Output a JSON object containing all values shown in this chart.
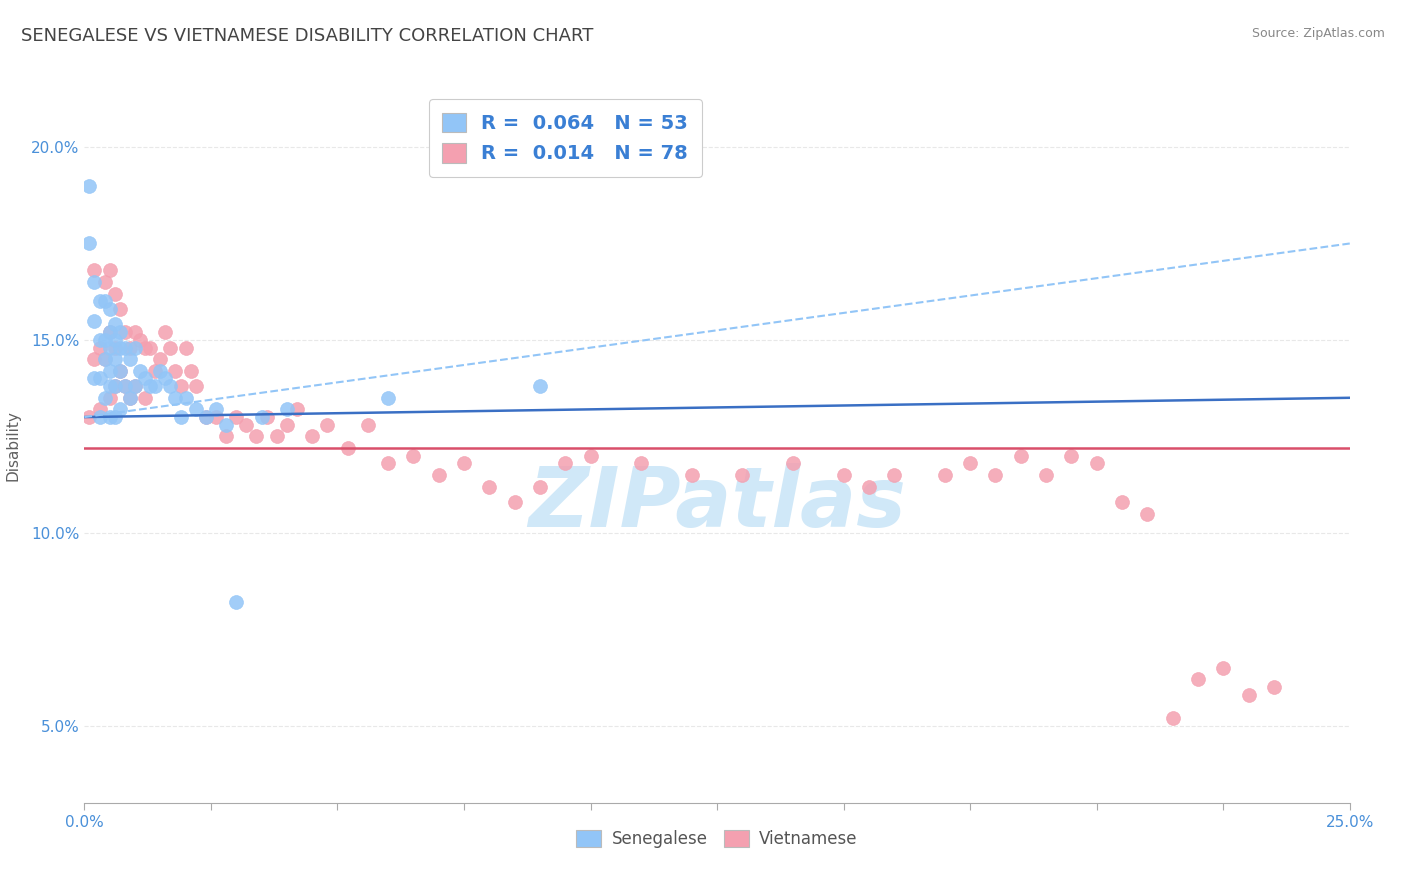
{
  "title": "SENEGALESE VS VIETNAMESE DISABILITY CORRELATION CHART",
  "source_text": "Source: ZipAtlas.com",
  "ylabel": "Disability",
  "xlim": [
    0.0,
    0.25
  ],
  "ylim": [
    0.03,
    0.215
  ],
  "xticks": [
    0.0,
    0.025,
    0.05,
    0.075,
    0.1,
    0.125,
    0.15,
    0.175,
    0.2,
    0.225,
    0.25
  ],
  "xtick_labels_show": [
    "0.0%",
    "",
    "",
    "",
    "",
    "",
    "",
    "",
    "",
    "",
    "25.0%"
  ],
  "yticks": [
    0.05,
    0.1,
    0.15,
    0.2
  ],
  "ytick_labels": [
    "5.0%",
    "10.0%",
    "15.0%",
    "20.0%"
  ],
  "senegalese_R": 0.064,
  "senegalese_N": 53,
  "vietnamese_R": 0.014,
  "vietnamese_N": 78,
  "senegalese_color": "#92c5f7",
  "vietnamese_color": "#f4a0b0",
  "senegalese_line_color": "#3a6fc4",
  "vietnamese_line_color": "#d94f6a",
  "senegalese_line_style": "-",
  "vietnamese_line_style": "-",
  "dashed_line_color": "#92c5f7",
  "legend_text_color": "#3a7fd4",
  "watermark_text": "ZIPatlas",
  "watermark_color": "#d0e8f8",
  "background_color": "#ffffff",
  "grid_color": "#e8e8e8",
  "grid_style": "--",
  "title_color": "#444444",
  "title_fontsize": 13,
  "axis_label_color": "#606060",
  "tick_label_color": "#4a90d9",
  "senegalese_scatter_x": [
    0.001,
    0.001,
    0.002,
    0.002,
    0.002,
    0.003,
    0.003,
    0.003,
    0.003,
    0.004,
    0.004,
    0.004,
    0.004,
    0.005,
    0.005,
    0.005,
    0.005,
    0.005,
    0.005,
    0.006,
    0.006,
    0.006,
    0.006,
    0.006,
    0.007,
    0.007,
    0.007,
    0.007,
    0.008,
    0.008,
    0.009,
    0.009,
    0.01,
    0.01,
    0.011,
    0.012,
    0.013,
    0.014,
    0.015,
    0.016,
    0.017,
    0.018,
    0.019,
    0.02,
    0.022,
    0.024,
    0.026,
    0.028,
    0.03,
    0.035,
    0.04,
    0.06,
    0.09
  ],
  "senegalese_scatter_y": [
    0.19,
    0.175,
    0.165,
    0.155,
    0.14,
    0.16,
    0.15,
    0.14,
    0.13,
    0.16,
    0.15,
    0.145,
    0.135,
    0.158,
    0.152,
    0.148,
    0.142,
    0.138,
    0.13,
    0.154,
    0.15,
    0.145,
    0.138,
    0.13,
    0.152,
    0.148,
    0.142,
    0.132,
    0.148,
    0.138,
    0.145,
    0.135,
    0.148,
    0.138,
    0.142,
    0.14,
    0.138,
    0.138,
    0.142,
    0.14,
    0.138,
    0.135,
    0.13,
    0.135,
    0.132,
    0.13,
    0.132,
    0.128,
    0.082,
    0.13,
    0.132,
    0.135,
    0.138
  ],
  "vietnamese_scatter_x": [
    0.001,
    0.002,
    0.002,
    0.003,
    0.003,
    0.004,
    0.004,
    0.005,
    0.005,
    0.005,
    0.006,
    0.006,
    0.006,
    0.007,
    0.007,
    0.008,
    0.008,
    0.009,
    0.009,
    0.01,
    0.01,
    0.011,
    0.012,
    0.012,
    0.013,
    0.014,
    0.015,
    0.016,
    0.017,
    0.018,
    0.019,
    0.02,
    0.021,
    0.022,
    0.024,
    0.026,
    0.028,
    0.03,
    0.032,
    0.034,
    0.036,
    0.038,
    0.04,
    0.042,
    0.045,
    0.048,
    0.052,
    0.056,
    0.06,
    0.065,
    0.07,
    0.075,
    0.08,
    0.085,
    0.09,
    0.095,
    0.1,
    0.11,
    0.12,
    0.13,
    0.14,
    0.15,
    0.155,
    0.16,
    0.17,
    0.175,
    0.18,
    0.185,
    0.19,
    0.195,
    0.2,
    0.205,
    0.21,
    0.215,
    0.22,
    0.225,
    0.23,
    0.235
  ],
  "vietnamese_scatter_y": [
    0.13,
    0.168,
    0.145,
    0.148,
    0.132,
    0.165,
    0.145,
    0.168,
    0.152,
    0.135,
    0.162,
    0.148,
    0.138,
    0.158,
    0.142,
    0.152,
    0.138,
    0.148,
    0.135,
    0.152,
    0.138,
    0.15,
    0.148,
    0.135,
    0.148,
    0.142,
    0.145,
    0.152,
    0.148,
    0.142,
    0.138,
    0.148,
    0.142,
    0.138,
    0.13,
    0.13,
    0.125,
    0.13,
    0.128,
    0.125,
    0.13,
    0.125,
    0.128,
    0.132,
    0.125,
    0.128,
    0.122,
    0.128,
    0.118,
    0.12,
    0.115,
    0.118,
    0.112,
    0.108,
    0.112,
    0.118,
    0.12,
    0.118,
    0.115,
    0.115,
    0.118,
    0.115,
    0.112,
    0.115,
    0.115,
    0.118,
    0.115,
    0.12,
    0.115,
    0.12,
    0.118,
    0.108,
    0.105,
    0.052,
    0.062,
    0.065,
    0.058,
    0.06
  ],
  "sen_line_x0": 0.0,
  "sen_line_y0": 0.13,
  "sen_line_x1": 0.25,
  "sen_line_y1": 0.135,
  "vie_line_x0": 0.0,
  "vie_line_y0": 0.122,
  "vie_line_x1": 0.25,
  "vie_line_y1": 0.122,
  "dash_line_x0": 0.0,
  "dash_line_y0": 0.13,
  "dash_line_x1": 0.25,
  "dash_line_y1": 0.175
}
